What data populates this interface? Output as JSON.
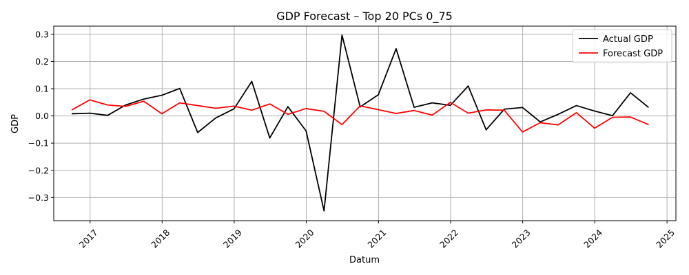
{
  "chart_data": {
    "type": "line",
    "title": "GDP Forecast – Top 20 PCs 0_75",
    "xlabel": "Datum",
    "ylabel": "GDP",
    "x_tick_labels": [
      "2017",
      "2018",
      "2019",
      "2020",
      "2021",
      "2022",
      "2023",
      "2024",
      "2025"
    ],
    "y_tick_labels": [
      "0.3",
      "0.2",
      "0.1",
      "0.0",
      "−0.1",
      "−0.2",
      "−0.3"
    ],
    "xlim": [
      "2016-07-01",
      "2025-02-15"
    ],
    "ylim": [
      -0.385,
      0.33
    ],
    "grid": true,
    "legend_position": "top-right",
    "x": [
      "2016-09-30",
      "2016-12-31",
      "2017-03-31",
      "2017-06-30",
      "2017-09-30",
      "2017-12-31",
      "2018-03-31",
      "2018-06-30",
      "2018-09-30",
      "2018-12-31",
      "2019-03-31",
      "2019-06-30",
      "2019-09-30",
      "2019-12-31",
      "2020-03-31",
      "2020-06-30",
      "2020-09-30",
      "2020-12-31",
      "2021-03-31",
      "2021-06-30",
      "2021-09-30",
      "2021-12-31",
      "2022-03-31",
      "2022-06-30",
      "2022-09-30",
      "2022-12-31",
      "2023-03-31",
      "2023-06-30",
      "2023-09-30",
      "2023-12-31",
      "2024-03-31",
      "2024-06-30",
      "2024-09-30"
    ],
    "series": [
      {
        "name": "Actual GDP",
        "color": "#000000",
        "values": [
          0.008,
          0.01,
          0.002,
          0.04,
          0.062,
          0.076,
          0.101,
          -0.061,
          -0.007,
          0.026,
          0.127,
          -0.081,
          0.034,
          -0.055,
          -0.349,
          0.297,
          0.033,
          0.078,
          0.247,
          0.032,
          0.048,
          0.039,
          0.11,
          -0.051,
          0.025,
          0.031,
          -0.022,
          0.006,
          0.038,
          0.018,
          0.001,
          0.085,
          0.031
        ]
      },
      {
        "name": "Forecast GDP",
        "color": "#ff0000",
        "values": [
          0.022,
          0.059,
          0.04,
          0.035,
          0.054,
          0.008,
          0.048,
          0.038,
          0.028,
          0.036,
          0.021,
          0.044,
          0.006,
          0.027,
          0.017,
          -0.032,
          0.037,
          0.023,
          0.009,
          0.02,
          0.003,
          0.05,
          0.01,
          0.022,
          0.021,
          -0.059,
          -0.025,
          -0.033,
          0.012,
          -0.045,
          -0.005,
          -0.004,
          -0.032
        ]
      }
    ]
  }
}
